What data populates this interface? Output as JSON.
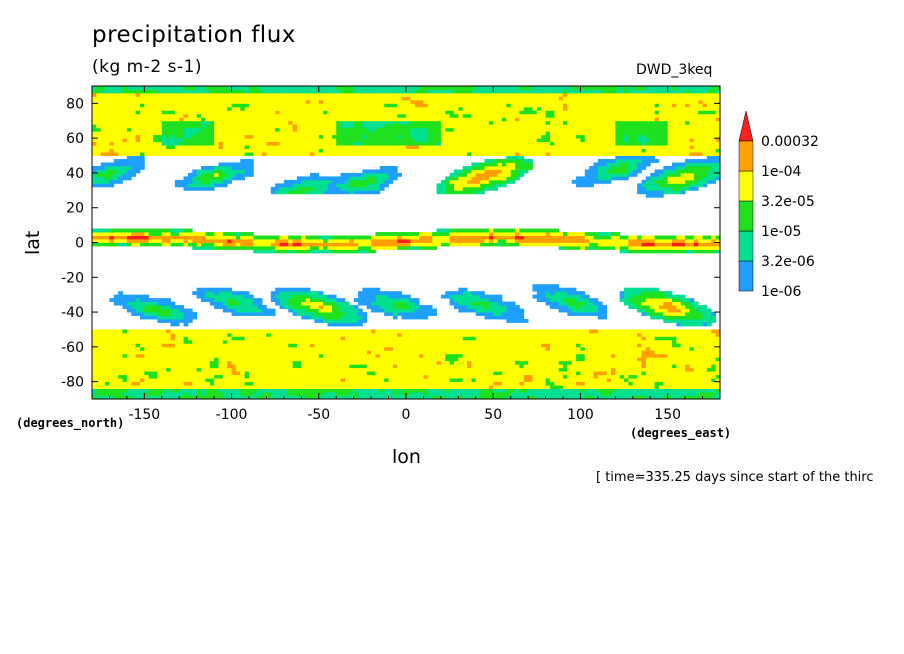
{
  "chart_data": {
    "type": "heatmap",
    "title": "precipitation flux",
    "units": "(kg m-2 s-1)",
    "model_label": "DWD_3keq",
    "xlabel": "lon",
    "ylabel": "lat",
    "x_units": "(degrees_east)",
    "y_units": "(degrees_north)",
    "time_info": "[ time=335.25 days since start of the thirc",
    "xlim": [
      -180,
      180
    ],
    "ylim": [
      -90,
      90
    ],
    "x_ticks": [
      -150,
      -100,
      -50,
      0,
      50,
      100,
      150
    ],
    "y_ticks": [
      -80,
      -60,
      -40,
      -20,
      0,
      20,
      40,
      60,
      80
    ],
    "grid": false,
    "colorbar": {
      "levels": [
        "1e-06",
        "3.2e-06",
        "1e-05",
        "3.2e-05",
        "1e-04",
        "0.00032"
      ],
      "colors": [
        "#1fa0ff",
        "#00e090",
        "#1ee01e",
        "#ffff00",
        "#ffa000",
        "#ff1e1e"
      ],
      "extend": "max",
      "placement": "right"
    }
  }
}
